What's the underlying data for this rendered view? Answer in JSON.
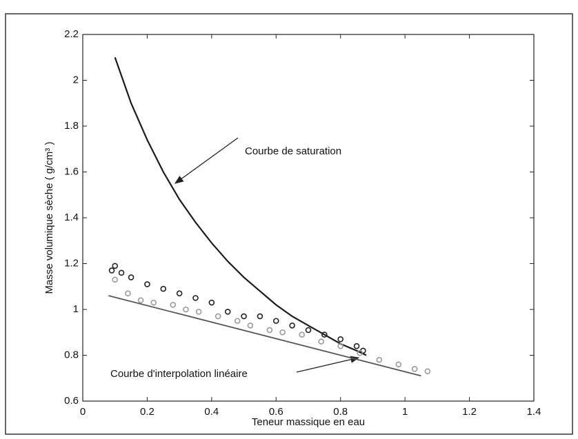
{
  "chart_data": {
    "type": "line",
    "xlabel": "Teneur massique en eau",
    "ylabel": "Masse volumique sèche ( g/cm³ )",
    "xlim": [
      0,
      1.4
    ],
    "ylim": [
      0.6,
      2.2
    ],
    "xticks": [
      0,
      0.2,
      0.4,
      0.6,
      0.8,
      1,
      1.2,
      1.4
    ],
    "yticks": [
      0.6,
      0.8,
      1,
      1.2,
      1.4,
      1.6,
      1.8,
      2,
      2.2
    ],
    "grid": false,
    "annotations": [
      "Courbe de saturation",
      "Courbe d'interpolation linéaire"
    ],
    "series": [
      {
        "mode": "line",
        "color": "#1a1a1a",
        "x": [
          0.1,
          0.15,
          0.2,
          0.25,
          0.3,
          0.35,
          0.4,
          0.45,
          0.5,
          0.55,
          0.6,
          0.65,
          0.7,
          0.75,
          0.8,
          0.85,
          0.88
        ],
        "values": [
          2.1,
          1.9,
          1.74,
          1.6,
          1.48,
          1.38,
          1.29,
          1.21,
          1.14,
          1.08,
          1.02,
          0.97,
          0.93,
          0.89,
          0.85,
          0.82,
          0.8
        ]
      },
      {
        "mode": "line",
        "color": "#555555",
        "x": [
          0.08,
          1.05
        ],
        "values": [
          1.06,
          0.71
        ]
      },
      {
        "mode": "markers",
        "color": "#222222",
        "x": [
          0.09,
          0.1,
          0.12,
          0.15,
          0.2,
          0.25,
          0.3,
          0.35,
          0.4,
          0.45,
          0.5,
          0.55,
          0.6,
          0.65,
          0.7,
          0.75,
          0.8,
          0.85,
          0.87
        ],
        "values": [
          1.17,
          1.19,
          1.16,
          1.14,
          1.11,
          1.09,
          1.07,
          1.05,
          1.03,
          0.99,
          0.97,
          0.97,
          0.95,
          0.93,
          0.91,
          0.89,
          0.87,
          0.84,
          0.82
        ]
      },
      {
        "mode": "markers",
        "color": "#9a9a9a",
        "x": [
          0.1,
          0.14,
          0.18,
          0.22,
          0.28,
          0.32,
          0.36,
          0.42,
          0.48,
          0.52,
          0.58,
          0.62,
          0.68,
          0.74,
          0.8,
          0.86,
          0.92,
          0.98,
          1.03,
          1.07
        ],
        "values": [
          1.13,
          1.07,
          1.04,
          1.03,
          1.02,
          1.0,
          0.99,
          0.97,
          0.95,
          0.93,
          0.91,
          0.9,
          0.89,
          0.86,
          0.84,
          0.81,
          0.78,
          0.76,
          0.74,
          0.73
        ]
      }
    ]
  }
}
